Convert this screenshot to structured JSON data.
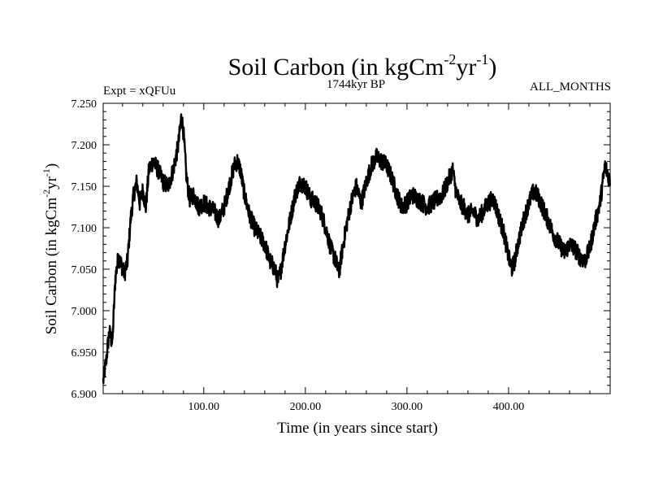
{
  "chart_data": {
    "type": "line",
    "title": {
      "base": "Soil Carbon (in kgCm",
      "sup1": "-2",
      "mid": "yr",
      "sup2": "-1",
      "end": ")"
    },
    "subtitle_left": "Expt = xQFUu",
    "subtitle_center": "1744kyr BP",
    "subtitle_right": "ALL_MONTHS",
    "xlabel": "Time (in years since start)",
    "ylabel": {
      "base": "Soil Carbon (in kgCm",
      "sup1": "-2",
      "mid": "yr",
      "sup2": "-1",
      "end": ")"
    },
    "xlim": [
      1,
      500
    ],
    "ylim": [
      6.9,
      7.25
    ],
    "x_ticks": [
      100,
      200,
      300,
      400
    ],
    "x_tick_labels": [
      "100.00",
      "200.00",
      "300.00",
      "400.00"
    ],
    "y_ticks": [
      6.9,
      6.95,
      7.0,
      7.05,
      7.1,
      7.15,
      7.2,
      7.25
    ],
    "y_tick_labels": [
      "6.900",
      "6.950",
      "7.000",
      "7.050",
      "7.100",
      "7.150",
      "7.200",
      "7.250"
    ],
    "line_color": "#000000",
    "series": [
      {
        "name": "Soil Carbon",
        "x": [
          1,
          4,
          7,
          10,
          13,
          16,
          19,
          22,
          25,
          28,
          31,
          34,
          37,
          40,
          43,
          46,
          50,
          55,
          60,
          65,
          70,
          75,
          78,
          80,
          83,
          86,
          90,
          95,
          100,
          105,
          110,
          115,
          120,
          125,
          130,
          133,
          136,
          140,
          145,
          150,
          155,
          160,
          165,
          170,
          173,
          176,
          180,
          185,
          190,
          195,
          200,
          205,
          210,
          215,
          220,
          225,
          230,
          233,
          236,
          240,
          245,
          250,
          255,
          260,
          265,
          270,
          275,
          280,
          285,
          290,
          295,
          300,
          305,
          310,
          315,
          320,
          325,
          330,
          335,
          340,
          345,
          348,
          352,
          356,
          360,
          365,
          370,
          375,
          380,
          385,
          390,
          395,
          400,
          403,
          406,
          410,
          415,
          420,
          425,
          430,
          435,
          440,
          445,
          450,
          455,
          460,
          465,
          470,
          475,
          480,
          485,
          490,
          495,
          500
        ],
        "values": [
          6.915,
          6.94,
          6.975,
          6.96,
          7.04,
          7.065,
          7.055,
          7.045,
          7.06,
          7.11,
          7.14,
          7.155,
          7.13,
          7.145,
          7.125,
          7.17,
          7.18,
          7.17,
          7.155,
          7.15,
          7.17,
          7.2,
          7.235,
          7.215,
          7.16,
          7.135,
          7.14,
          7.125,
          7.13,
          7.125,
          7.12,
          7.11,
          7.125,
          7.15,
          7.175,
          7.18,
          7.17,
          7.14,
          7.115,
          7.1,
          7.09,
          7.08,
          7.06,
          7.05,
          7.035,
          7.05,
          7.08,
          7.11,
          7.14,
          7.155,
          7.15,
          7.135,
          7.13,
          7.12,
          7.1,
          7.075,
          7.06,
          7.045,
          7.07,
          7.1,
          7.13,
          7.15,
          7.13,
          7.155,
          7.175,
          7.185,
          7.18,
          7.175,
          7.16,
          7.14,
          7.125,
          7.13,
          7.14,
          7.135,
          7.13,
          7.125,
          7.13,
          7.135,
          7.14,
          7.155,
          7.17,
          7.145,
          7.13,
          7.125,
          7.115,
          7.12,
          7.11,
          7.12,
          7.13,
          7.135,
          7.115,
          7.095,
          7.065,
          7.05,
          7.06,
          7.085,
          7.11,
          7.13,
          7.145,
          7.135,
          7.12,
          7.105,
          7.09,
          7.08,
          7.07,
          7.08,
          7.075,
          7.065,
          7.06,
          7.075,
          7.105,
          7.13,
          7.175,
          7.155
        ]
      }
    ]
  }
}
